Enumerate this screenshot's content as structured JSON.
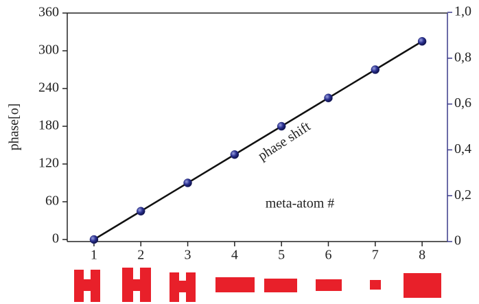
{
  "chart_data": {
    "type": "line",
    "y_label": "phase[o]",
    "annotations": [
      "phase shift",
      "meta-atom #"
    ],
    "x": [
      1,
      2,
      3,
      4,
      5,
      6,
      7,
      8
    ],
    "values": [
      0,
      45,
      90,
      135,
      180,
      225,
      270,
      315
    ],
    "color": "#111111",
    "marker_color": "#1f2470",
    "xlim": [
      0.43,
      8.54
    ],
    "xticks": [
      1,
      2,
      3,
      4,
      5,
      6,
      7,
      8
    ],
    "ylim": [
      0,
      360
    ],
    "yticks": [
      0,
      60,
      120,
      180,
      240,
      300,
      360
    ],
    "y2lim": [
      0,
      1
    ],
    "y2ticks": [
      0,
      {
        "value": 0.2,
        "label": "0,2"
      },
      {
        "value": 0.4,
        "label": "0,4"
      },
      {
        "value": 0.6,
        "label": "0,6"
      },
      {
        "value": 0.8,
        "label": "0,8"
      },
      {
        "value": 1,
        "label": "1,0"
      }
    ],
    "y2_color": "#3a3a8a"
  }
}
